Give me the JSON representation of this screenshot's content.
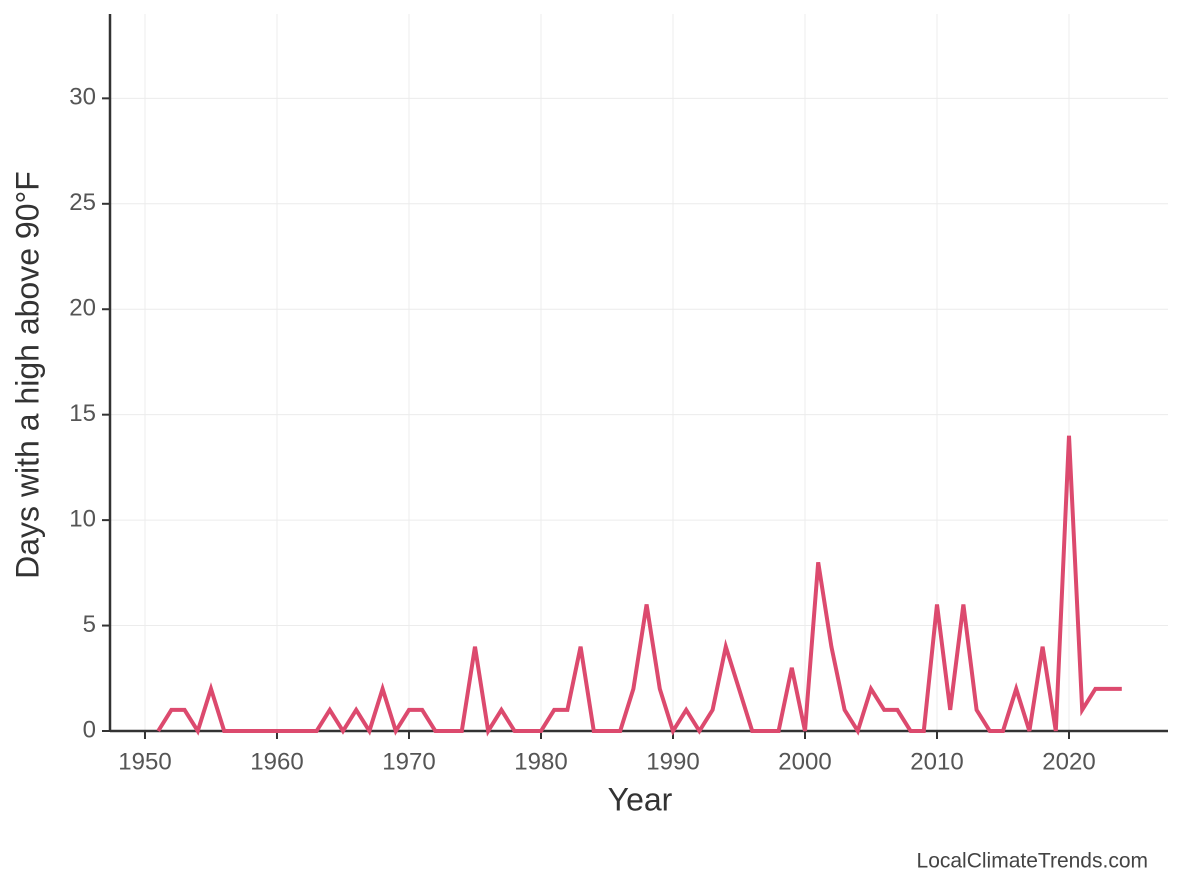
{
  "chart_data": {
    "type": "line",
    "xlabel": "Year",
    "ylabel": "Days with a high above 90°F",
    "credit": "LocalClimateTrends.com",
    "x": [
      1951,
      1952,
      1953,
      1954,
      1955,
      1956,
      1957,
      1958,
      1959,
      1960,
      1961,
      1962,
      1963,
      1964,
      1965,
      1966,
      1967,
      1968,
      1969,
      1970,
      1971,
      1972,
      1973,
      1974,
      1975,
      1976,
      1977,
      1978,
      1979,
      1980,
      1981,
      1982,
      1983,
      1984,
      1985,
      1986,
      1987,
      1988,
      1989,
      1990,
      1991,
      1992,
      1993,
      1994,
      1995,
      1996,
      1997,
      1998,
      1999,
      2000,
      2001,
      2002,
      2003,
      2004,
      2005,
      2006,
      2007,
      2008,
      2009,
      2010,
      2011,
      2012,
      2013,
      2014,
      2015,
      2016,
      2017,
      2018,
      2019,
      2020,
      2021,
      2022,
      2023,
      2024
    ],
    "series": [
      {
        "color": "#dc4a6e",
        "values": [
          0,
          1,
          1,
          0,
          2,
          0,
          0,
          0,
          0,
          0,
          0,
          0,
          0,
          1,
          0,
          1,
          0,
          2,
          0,
          1,
          1,
          0,
          0,
          0,
          4,
          0,
          1,
          0,
          0,
          0,
          1,
          1,
          4,
          0,
          0,
          0,
          2,
          6,
          2,
          0,
          1,
          0,
          1,
          4,
          2,
          0,
          0,
          0,
          3,
          0,
          8,
          4,
          1,
          0,
          2,
          1,
          1,
          0,
          0,
          6,
          1,
          6,
          1,
          0,
          0,
          2,
          0,
          4,
          0,
          14,
          1,
          2,
          2,
          2
        ]
      }
    ],
    "xlim": [
      1947.35,
      2027.5
    ],
    "xticks": [
      1950,
      1960,
      1970,
      1980,
      1990,
      2000,
      2010,
      2020
    ],
    "ylim": [
      0,
      34
    ],
    "yticks": [
      0,
      5,
      10,
      15,
      20,
      25,
      30
    ],
    "grid": true
  }
}
